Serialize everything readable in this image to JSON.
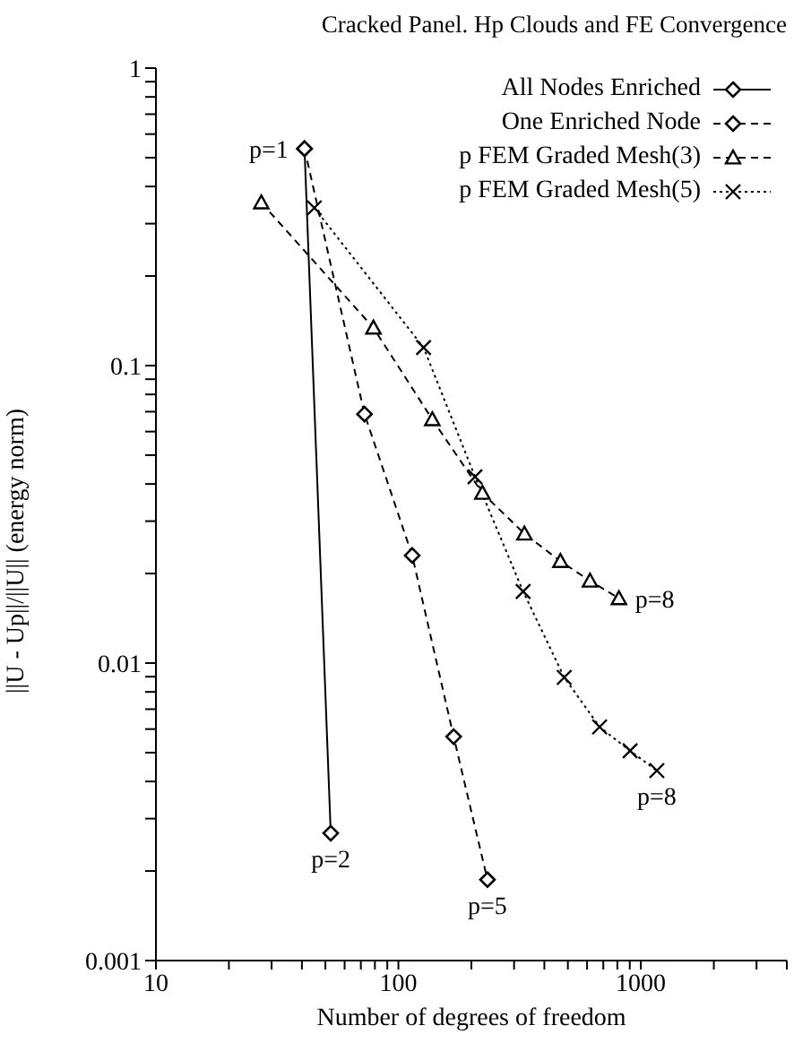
{
  "chart_data": {
    "type": "line",
    "title": "Cracked Panel. Hp Clouds and FE Convergence",
    "xlabel": "Number of degrees of freedom",
    "ylabel": "||U - Up||/||U|| (energy norm)",
    "log": "xy",
    "legend": "top right",
    "xlim": [
      10,
      4000
    ],
    "ylim": [
      0.001,
      1
    ],
    "xticks": [
      10,
      {
        "value": 20,
        "label": null
      },
      {
        "value": 30,
        "label": null
      },
      {
        "value": 40,
        "label": null
      },
      {
        "value": 50,
        "label": null
      },
      {
        "value": 60,
        "label": null
      },
      {
        "value": 70,
        "label": null
      },
      {
        "value": 80,
        "label": null
      },
      {
        "value": 90,
        "label": null
      },
      100,
      {
        "value": 200,
        "label": null
      },
      {
        "value": 300,
        "label": null
      },
      {
        "value": 400,
        "label": null
      },
      {
        "value": 500,
        "label": null
      },
      {
        "value": 600,
        "label": null
      },
      {
        "value": 700,
        "label": null
      },
      {
        "value": 800,
        "label": null
      },
      {
        "value": 900,
        "label": null
      },
      1000,
      {
        "value": 2000,
        "label": null
      },
      {
        "value": 3000,
        "label": null
      },
      {
        "value": 4000,
        "label": null
      }
    ],
    "yticks": [
      0.001,
      {
        "value": 0.002,
        "label": null
      },
      {
        "value": 0.003,
        "label": null
      },
      {
        "value": 0.004,
        "label": null
      },
      {
        "value": 0.005,
        "label": null
      },
      {
        "value": 0.006,
        "label": null
      },
      {
        "value": 0.007,
        "label": null
      },
      {
        "value": 0.008,
        "label": null
      },
      {
        "value": 0.009,
        "label": null
      },
      0.01,
      {
        "value": 0.02,
        "label": null
      },
      {
        "value": 0.03,
        "label": null
      },
      {
        "value": 0.04,
        "label": null
      },
      {
        "value": 0.05,
        "label": null
      },
      {
        "value": 0.06,
        "label": null
      },
      {
        "value": 0.07,
        "label": null
      },
      {
        "value": 0.08,
        "label": null
      },
      {
        "value": 0.09,
        "label": null
      },
      0.1,
      {
        "value": 0.2,
        "label": null
      },
      {
        "value": 0.3,
        "label": null
      },
      {
        "value": 0.4,
        "label": null
      },
      {
        "value": 0.5,
        "label": null
      },
      {
        "value": 0.6,
        "label": null
      },
      {
        "value": 0.7,
        "label": null
      },
      {
        "value": 0.8,
        "label": null
      },
      {
        "value": 0.9,
        "label": null
      },
      1
    ],
    "series": [
      {
        "name": "All Nodes Enriched",
        "color": "#000000",
        "marker": "diamond",
        "line_style": "solid",
        "x": [
          41,
          52.6
        ],
        "values": [
          0.536,
          0.00268
        ]
      },
      {
        "name": "One Enriched Node",
        "color": "#000000",
        "marker": "diamond",
        "line_style": "dashed",
        "x": [
          41,
          72.5,
          114,
          169,
          233
        ],
        "values": [
          0.536,
          0.0687,
          0.023,
          0.00566,
          0.00187
        ]
      },
      {
        "name": "p FEM Graded Mesh(3)",
        "color": "#000000",
        "marker": "triangle",
        "line_style": "dashed",
        "x": [
          27.2,
          78.9,
          138,
          222,
          331,
          466,
          617,
          812
        ],
        "values": [
          0.353,
          0.134,
          0.0659,
          0.0373,
          0.0272,
          0.022,
          0.0189,
          0.0165
        ]
      },
      {
        "name": "p FEM Graded Mesh(5)",
        "color": "#000000",
        "marker": "cross",
        "line_style": "dotted",
        "x": [
          45,
          127,
          207,
          327,
          483,
          676,
          903,
          1164
        ],
        "values": [
          0.339,
          0.115,
          0.0423,
          0.0174,
          0.00895,
          0.0061,
          0.00507,
          0.00435
        ]
      }
    ],
    "annotations": [
      {
        "text": "p=1",
        "x": 41,
        "y": 0.536
      },
      {
        "text": "p=2",
        "x": 52.6,
        "y": 0.00268
      },
      {
        "text": "p=5",
        "x": 233,
        "y": 0.00187
      },
      {
        "text": "p=8",
        "x": 812,
        "y": 0.0165
      },
      {
        "text": "p=8",
        "x": 1164,
        "y": 0.00435
      }
    ]
  }
}
